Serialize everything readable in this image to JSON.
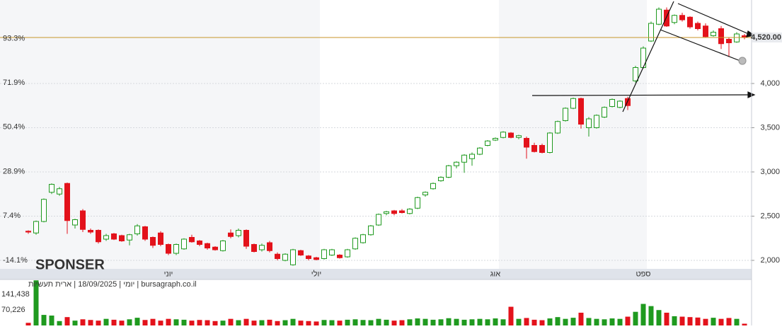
{
  "chart_data": [
    {
      "type": "candlestick",
      "watermark": "SPONSER",
      "up_color": "#1f9a1f",
      "down_color": "#e3121b",
      "open": [
        2330,
        2310,
        2440,
        2770,
        2750,
        2870,
        2400,
        2560,
        2340,
        2340,
        2240,
        2300,
        2280,
        2230,
        2300,
        2380,
        2260,
        2310,
        2180,
        2080,
        2130,
        2260,
        2220,
        2190,
        2150,
        2110,
        2310,
        2280,
        2340,
        2180,
        2120,
        2200,
        2070,
        2000,
        1950,
        2110,
        2050,
        2030,
        2020,
        2060,
        2060,
        2040,
        2130,
        2200,
        2290,
        2400,
        2530,
        2560,
        2560,
        2530,
        2590,
        2740,
        2810,
        2900,
        2940,
        3070,
        3110,
        3150,
        3200,
        3300,
        3360,
        3390,
        3440,
        3390,
        3380,
        3300,
        3300,
        3220,
        3440,
        3580,
        3720,
        3830,
        3500,
        3500,
        3620,
        3740,
        3730,
        3830,
        4030,
        4180,
        4480,
        4670,
        4830,
        4690,
        4770,
        4750,
        4680,
        4650,
        4540,
        4620,
        4500,
        4470,
        4540
      ],
      "high": [
        2340,
        2450,
        2700,
        2870,
        2830,
        2880,
        2470,
        2580,
        2360,
        2350,
        2300,
        2310,
        2290,
        2300,
        2410,
        2390,
        2270,
        2330,
        2190,
        2190,
        2250,
        2290,
        2230,
        2200,
        2160,
        2230,
        2350,
        2360,
        2350,
        2190,
        2190,
        2220,
        2090,
        2080,
        2130,
        2120,
        2060,
        2040,
        2130,
        2130,
        2070,
        2130,
        2260,
        2300,
        2400,
        2530,
        2560,
        2570,
        2580,
        2590,
        2720,
        2780,
        2880,
        2950,
        3080,
        3120,
        3200,
        3220,
        3280,
        3360,
        3390,
        3460,
        3450,
        3420,
        3400,
        3330,
        3320,
        3450,
        3580,
        3730,
        3840,
        3840,
        3620,
        3650,
        3740,
        3830,
        3810,
        3850,
        4200,
        4420,
        4700,
        4860,
        4860,
        4780,
        4800,
        4760,
        4700,
        4680,
        4600,
        4650,
        4520,
        4580,
        4560
      ],
      "low": [
        2300,
        2290,
        2430,
        2750,
        2730,
        2300,
        2360,
        2320,
        2300,
        2190,
        2220,
        2230,
        2210,
        2170,
        2280,
        2220,
        2140,
        2160,
        2060,
        2060,
        2120,
        2200,
        2160,
        2120,
        2110,
        2100,
        2250,
        2260,
        2130,
        2090,
        2100,
        2090,
        2000,
        1990,
        1940,
        2050,
        2000,
        2000,
        2010,
        2050,
        2020,
        2030,
        2120,
        2190,
        2280,
        2390,
        2510,
        2510,
        2530,
        2520,
        2580,
        2720,
        2800,
        2890,
        2930,
        3040,
        2990,
        3070,
        3190,
        3290,
        3350,
        3380,
        3380,
        3370,
        3150,
        3220,
        3210,
        3210,
        3430,
        3570,
        3710,
        3490,
        3400,
        3490,
        3610,
        3730,
        3720,
        3700,
        4010,
        4170,
        4470,
        4660,
        4640,
        4670,
        4700,
        4620,
        4600,
        4520,
        4530,
        4390,
        4300,
        4460,
        4500
      ],
      "close": [
        2320,
        2440,
        2690,
        2860,
        2810,
        2450,
        2460,
        2350,
        2320,
        2210,
        2280,
        2240,
        2220,
        2290,
        2390,
        2240,
        2170,
        2180,
        2080,
        2180,
        2240,
        2210,
        2180,
        2140,
        2120,
        2220,
        2270,
        2340,
        2160,
        2100,
        2170,
        2110,
        2020,
        2070,
        2120,
        2060,
        2020,
        2010,
        2120,
        2120,
        2030,
        2120,
        2250,
        2290,
        2390,
        2520,
        2550,
        2530,
        2540,
        2580,
        2710,
        2770,
        2870,
        2940,
        3070,
        3110,
        3190,
        3200,
        3270,
        3350,
        3380,
        3450,
        3390,
        3410,
        3280,
        3230,
        3220,
        3440,
        3570,
        3720,
        3830,
        3540,
        3600,
        3640,
        3730,
        3820,
        3800,
        3750,
        4180,
        4400,
        4680,
        4840,
        4650,
        4770,
        4720,
        4640,
        4620,
        4530,
        4580,
        4450,
        4460,
        4560,
        4520
      ],
      "xticks": [
        {
          "value": 18,
          "label": "יוני"
        },
        {
          "value": 37,
          "label": "יולי"
        },
        {
          "value": 60,
          "label": "אוג"
        },
        {
          "value": 79,
          "label": "ספט"
        }
      ],
      "ylim": [
        1904,
        4944
      ],
      "yticks": [
        {
          "value": 2000,
          "label": "2,000"
        },
        {
          "value": 2500,
          "label": "2,500"
        },
        {
          "value": 3000,
          "label": "3,000"
        },
        {
          "value": 3500,
          "label": "3,500"
        },
        {
          "value": 4000,
          "label": "4,000"
        }
      ],
      "y2lim": [
        -18.2,
        112.0
      ],
      "y2ticks": [
        {
          "value": -14.1,
          "label": "-14.1%"
        },
        {
          "value": 7.4,
          "label": "7.4%"
        },
        {
          "value": 28.9,
          "label": "28.9%"
        },
        {
          "value": 50.4,
          "label": "50.4%"
        },
        {
          "value": 71.9,
          "label": "71.9%"
        },
        {
          "value": 93.3,
          "label": "93.3%"
        }
      ],
      "last_price": {
        "value": 4520,
        "label": "4,520.00"
      },
      "grid": true
    },
    {
      "type": "volume",
      "title": "יומי | 18/09/2025 | ארית תעשיות | bursagraph.co.il",
      "values": [
        12000,
        205000,
        48000,
        45000,
        20000,
        38000,
        22000,
        28000,
        25000,
        22000,
        30000,
        26000,
        22000,
        28000,
        35000,
        25000,
        30000,
        22000,
        30000,
        28000,
        26000,
        22000,
        25000,
        24000,
        20000,
        22000,
        30000,
        24000,
        30000,
        22000,
        24000,
        26000,
        20000,
        24000,
        30000,
        22000,
        20000,
        18000,
        25000,
        24000,
        22000,
        26000,
        28000,
        25000,
        24000,
        30000,
        26000,
        22000,
        24000,
        28000,
        32000,
        30000,
        26000,
        28000,
        33000,
        30000,
        26000,
        28000,
        30000,
        28000,
        32000,
        28000,
        85000,
        30000,
        34000,
        26000,
        24000,
        32000,
        38000,
        30000,
        35000,
        58000,
        34000,
        30000,
        28000,
        32000,
        30000,
        40000,
        62000,
        98000,
        88000,
        70000,
        58000,
        42000,
        40000,
        38000,
        36000,
        30000,
        35000,
        30000,
        34000,
        30000,
        8000
      ],
      "ylim": [
        0,
        209000
      ],
      "yticks": [
        {
          "value": 70226,
          "label": "70,226"
        },
        {
          "value": 141438,
          "label": "141,438"
        }
      ]
    }
  ]
}
